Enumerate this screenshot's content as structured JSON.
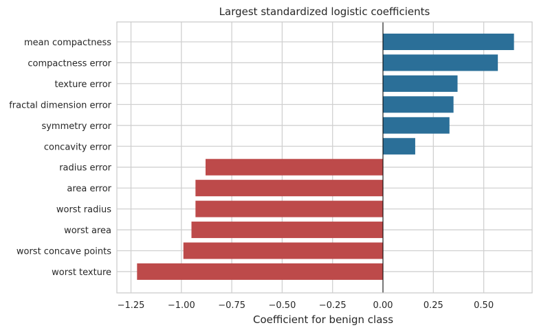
{
  "chart_data": {
    "type": "bar",
    "orientation": "horizontal",
    "title": "Largest standardized logistic coefficients",
    "xlabel": "Coefficient for benign class",
    "ylabel": "",
    "xlim": [
      -1.32,
      0.74
    ],
    "x_ticks": [
      -1.25,
      -1.0,
      -0.75,
      -0.5,
      -0.25,
      0.0,
      0.25,
      0.5
    ],
    "x_tick_labels": [
      "−1.25",
      "−1.00",
      "−0.75",
      "−0.50",
      "−0.25",
      "0.00",
      "0.25",
      "0.50"
    ],
    "grid": true,
    "zero_line": true,
    "categories": [
      "mean compactness",
      "compactness error",
      "texture error",
      "fractal dimension error",
      "symmetry error",
      "concavity error",
      "radius error",
      "area error",
      "worst radius",
      "worst area",
      "worst concave points",
      "worst texture"
    ],
    "values": [
      0.65,
      0.57,
      0.37,
      0.35,
      0.33,
      0.16,
      -0.88,
      -0.93,
      -0.93,
      -0.95,
      -0.99,
      -1.22
    ],
    "colors": {
      "positive": "#2b6f98",
      "negative": "#bd4a4a",
      "grid": "#d0d0d0",
      "axes_edge": "#cccccc",
      "zero_line": "#000000"
    }
  }
}
